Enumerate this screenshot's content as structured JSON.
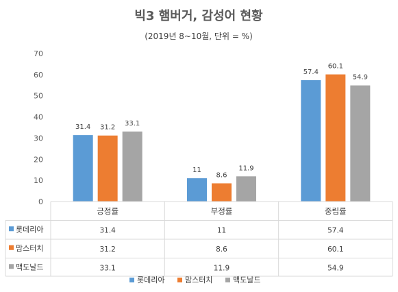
{
  "chart_data": {
    "type": "bar",
    "title": "빅3 햄버거, 감성어 현황",
    "subtitle": "(2019년 8~10월, 단위 = %)",
    "categories": [
      "긍정률",
      "부정률",
      "중립률"
    ],
    "series": [
      {
        "name": "롯데리아",
        "color": "#5b9bd5",
        "values": [
          31.4,
          11,
          57.4
        ],
        "labels": [
          "31.4",
          "11",
          "57.4"
        ]
      },
      {
        "name": "맘스터치",
        "color": "#ed7d31",
        "values": [
          31.2,
          8.6,
          60.1
        ],
        "labels": [
          "31.2",
          "8.6",
          "60.1"
        ]
      },
      {
        "name": "맥도날드",
        "color": "#a5a5a5",
        "values": [
          33.1,
          11.9,
          54.9
        ],
        "labels": [
          "33.1",
          "11.9",
          "54.9"
        ]
      }
    ],
    "ylim": [
      0,
      70
    ],
    "yticks": [
      "0",
      "10",
      "20",
      "30",
      "40",
      "50",
      "60",
      "70"
    ],
    "grid": false,
    "legend": "bottom",
    "data_table": true
  }
}
